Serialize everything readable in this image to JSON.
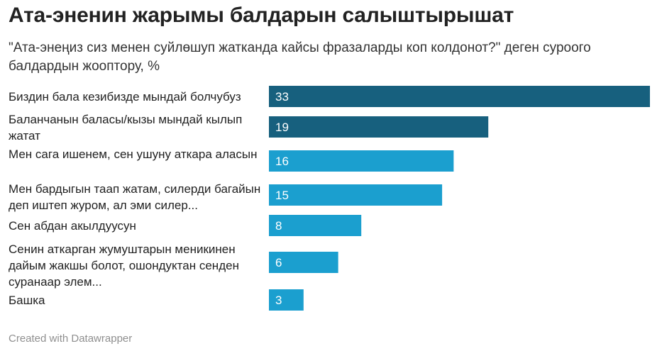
{
  "header": {
    "title": "Ата-эненин жарымы балдарын салыштырышат",
    "subtitle": "\"Ата-энеңиз сиз менен суйлөшуп жатканда кайсы фразаларды коп колдонот?\" деген суроого балдардын жооптору, %"
  },
  "footer": {
    "credit": "Created with Datawrapper"
  },
  "colors": {
    "dark": "#17607e",
    "light": "#1b9fcf",
    "value_text": "#ffffff"
  },
  "chart_data": {
    "type": "bar",
    "orientation": "horizontal",
    "title": "Ата-эненин жарымы балдарын салыштырышат",
    "subtitle": "\"Ата-энеңиз сиз менен суйлөшуп жатканда кайсы фразаларды коп колдонот?\" деген суроого балдардын жооптору, %",
    "categories": [
      "Биздин бала кезибизде мындай болчубуз",
      "Баланчанын баласы/кызы мындай кылып жатат",
      "Мен сага ишенем, сен ушуну аткара аласын",
      "Мен бардыгын таап жатам, силерди багайын деп иштеп журом, ал эми силер...",
      "Сен абдан акылдуусун",
      "Сенин аткарган жумуштарын меникинен дайым жакшы болот, ошондуктан сенден суранаар элем...",
      "Башка"
    ],
    "values": [
      33,
      19,
      16,
      15,
      8,
      6,
      3
    ],
    "highlight": [
      true,
      true,
      false,
      false,
      false,
      false,
      false
    ],
    "xlim": [
      0,
      33
    ],
    "grid": false,
    "data_labels": "inside-left"
  }
}
